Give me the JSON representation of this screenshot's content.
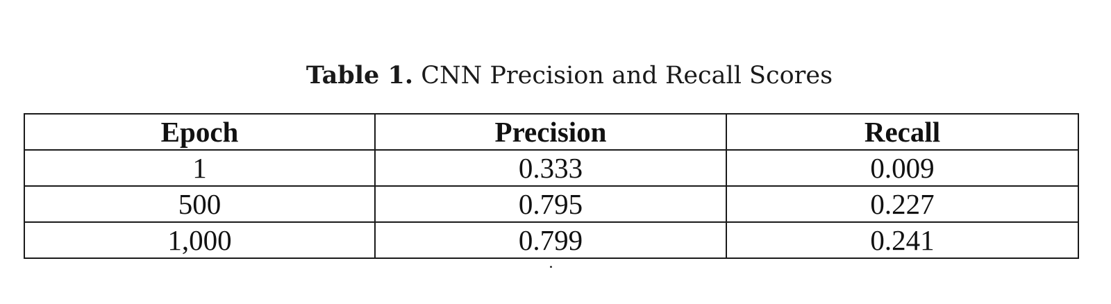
{
  "caption": {
    "label": "Table 1.",
    "text": "CNN Precision and Recall Scores"
  },
  "table": {
    "headers": [
      "Epoch",
      "Precision",
      "Recall"
    ],
    "rows": [
      [
        "1",
        "0.333",
        "0.009"
      ],
      [
        "500",
        "0.795",
        "0.227"
      ],
      [
        "1,000",
        "0.799",
        "0.241"
      ]
    ]
  }
}
